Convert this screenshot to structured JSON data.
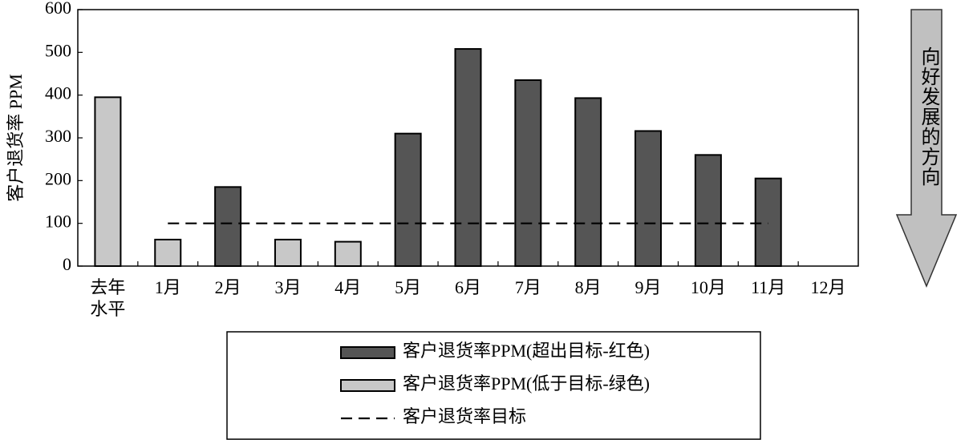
{
  "chart_data": {
    "type": "bar",
    "y_label": "客户退货率 PPM",
    "annotation": "向好发展的方向",
    "categories": [
      "去年\n水平",
      "1月",
      "2月",
      "3月",
      "4月",
      "5月",
      "6月",
      "7月",
      "8月",
      "9月",
      "10月",
      "11月",
      "12月"
    ],
    "series": [
      {
        "name": "客户退货率PPM(超出目标-红色)",
        "type": "bar",
        "color": "#555555",
        "values": [
          null,
          null,
          185,
          null,
          null,
          310,
          508,
          435,
          393,
          316,
          260,
          205,
          null
        ]
      },
      {
        "name": "客户退货率PPM(低于目标-绿色)",
        "type": "bar",
        "color": "#c8c8c8",
        "values": [
          395,
          62,
          null,
          62,
          57,
          null,
          null,
          null,
          null,
          null,
          null,
          null,
          null
        ]
      },
      {
        "name": "客户退货率目标",
        "type": "line",
        "color": "#000000",
        "values": [
          null,
          100,
          100,
          100,
          100,
          100,
          100,
          100,
          100,
          100,
          100,
          100,
          null
        ]
      }
    ],
    "ylim": [
      0,
      600
    ],
    "yticks": [
      0,
      100,
      200,
      300,
      400,
      500,
      600
    ],
    "legend": "bottom"
  }
}
